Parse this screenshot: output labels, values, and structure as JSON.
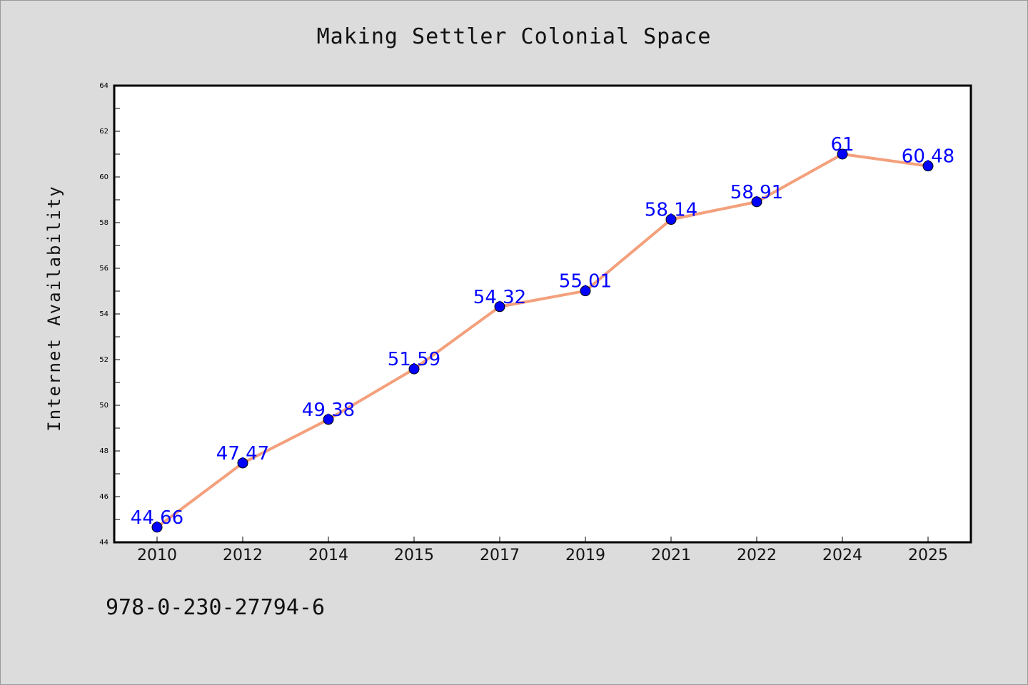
{
  "chart_data": {
    "type": "line",
    "title": "Making Settler Colonial Space",
    "xlabel": "",
    "ylabel": "Internet Availability",
    "categories": [
      "2010",
      "2012",
      "2014",
      "2015",
      "2017",
      "2019",
      "2021",
      "2022",
      "2024",
      "2025"
    ],
    "series": [
      {
        "values": [
          44.66,
          47.47,
          49.38,
          51.59,
          54.32,
          55.01,
          58.14,
          58.91,
          61,
          60.48
        ],
        "data_labels": [
          "44.66",
          "47.47",
          "49.38",
          "51.59",
          "54.32",
          "55.01",
          "58.14",
          "58.91",
          "61",
          "60.48"
        ]
      }
    ],
    "ylim": [
      44,
      64
    ],
    "y_ticks": [
      "44",
      "46",
      "48",
      "50",
      "52",
      "54",
      "56",
      "58",
      "60",
      "62",
      "64"
    ],
    "grid": false,
    "legend": "none",
    "colors": {
      "line": "#f4a07c",
      "marker": "#0000ff",
      "data_label": "#0000ff",
      "plot_background": "#ffffff",
      "page_background": "#dcdcdc"
    }
  },
  "footer": {
    "note": "978-0-230-27794-6"
  }
}
